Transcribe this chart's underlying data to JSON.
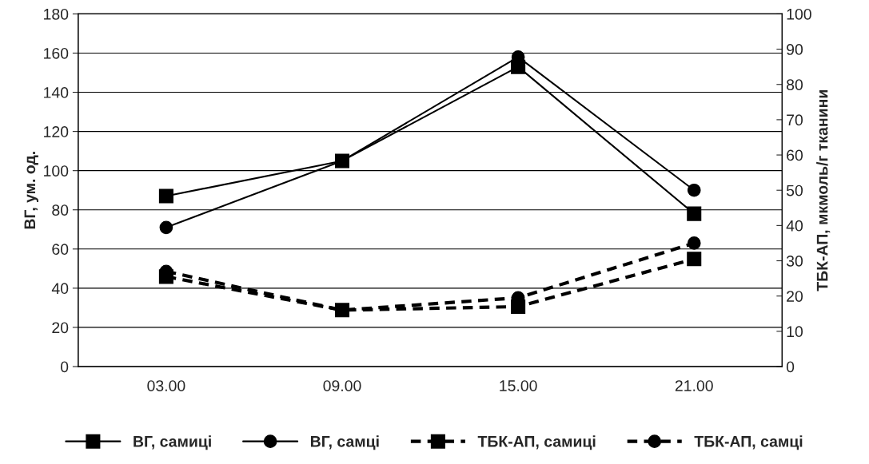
{
  "chart_data": {
    "type": "line",
    "categories": [
      "03.00",
      "09.00",
      "15.00",
      "21.00"
    ],
    "ylabel": "ВГ, ум. од.",
    "y2label": "ТБК-АП, мкмоль/г тканини",
    "ylim": [
      0,
      180
    ],
    "yticks": [
      0,
      20,
      40,
      60,
      80,
      100,
      120,
      140,
      160,
      180
    ],
    "y2lim": [
      0,
      100
    ],
    "y2ticks": [
      0,
      10,
      20,
      30,
      40,
      50,
      60,
      70,
      80,
      90,
      100
    ],
    "grid": "y",
    "legend": "bottom",
    "series": [
      {
        "name": "ВГ, самиці",
        "color": "#000000",
        "marker": "square",
        "line_style": "solid",
        "values": [
          87,
          105,
          153,
          78
        ]
      },
      {
        "name": "ВГ, самці",
        "color": "#000000",
        "marker": "circle",
        "line_style": "solid",
        "values": [
          71,
          105,
          158,
          90
        ]
      },
      {
        "name": "ТБК-АП, самиці",
        "color": "#000000",
        "marker": "square",
        "line_style": "dashed",
        "axis": "y2",
        "values": [
          25.5,
          16,
          17,
          30.5
        ]
      },
      {
        "name": "ТБК-АП, самці",
        "color": "#000000",
        "marker": "circle",
        "line_style": "dashed",
        "axis": "y2",
        "values": [
          27,
          16,
          19.5,
          35
        ]
      }
    ]
  }
}
